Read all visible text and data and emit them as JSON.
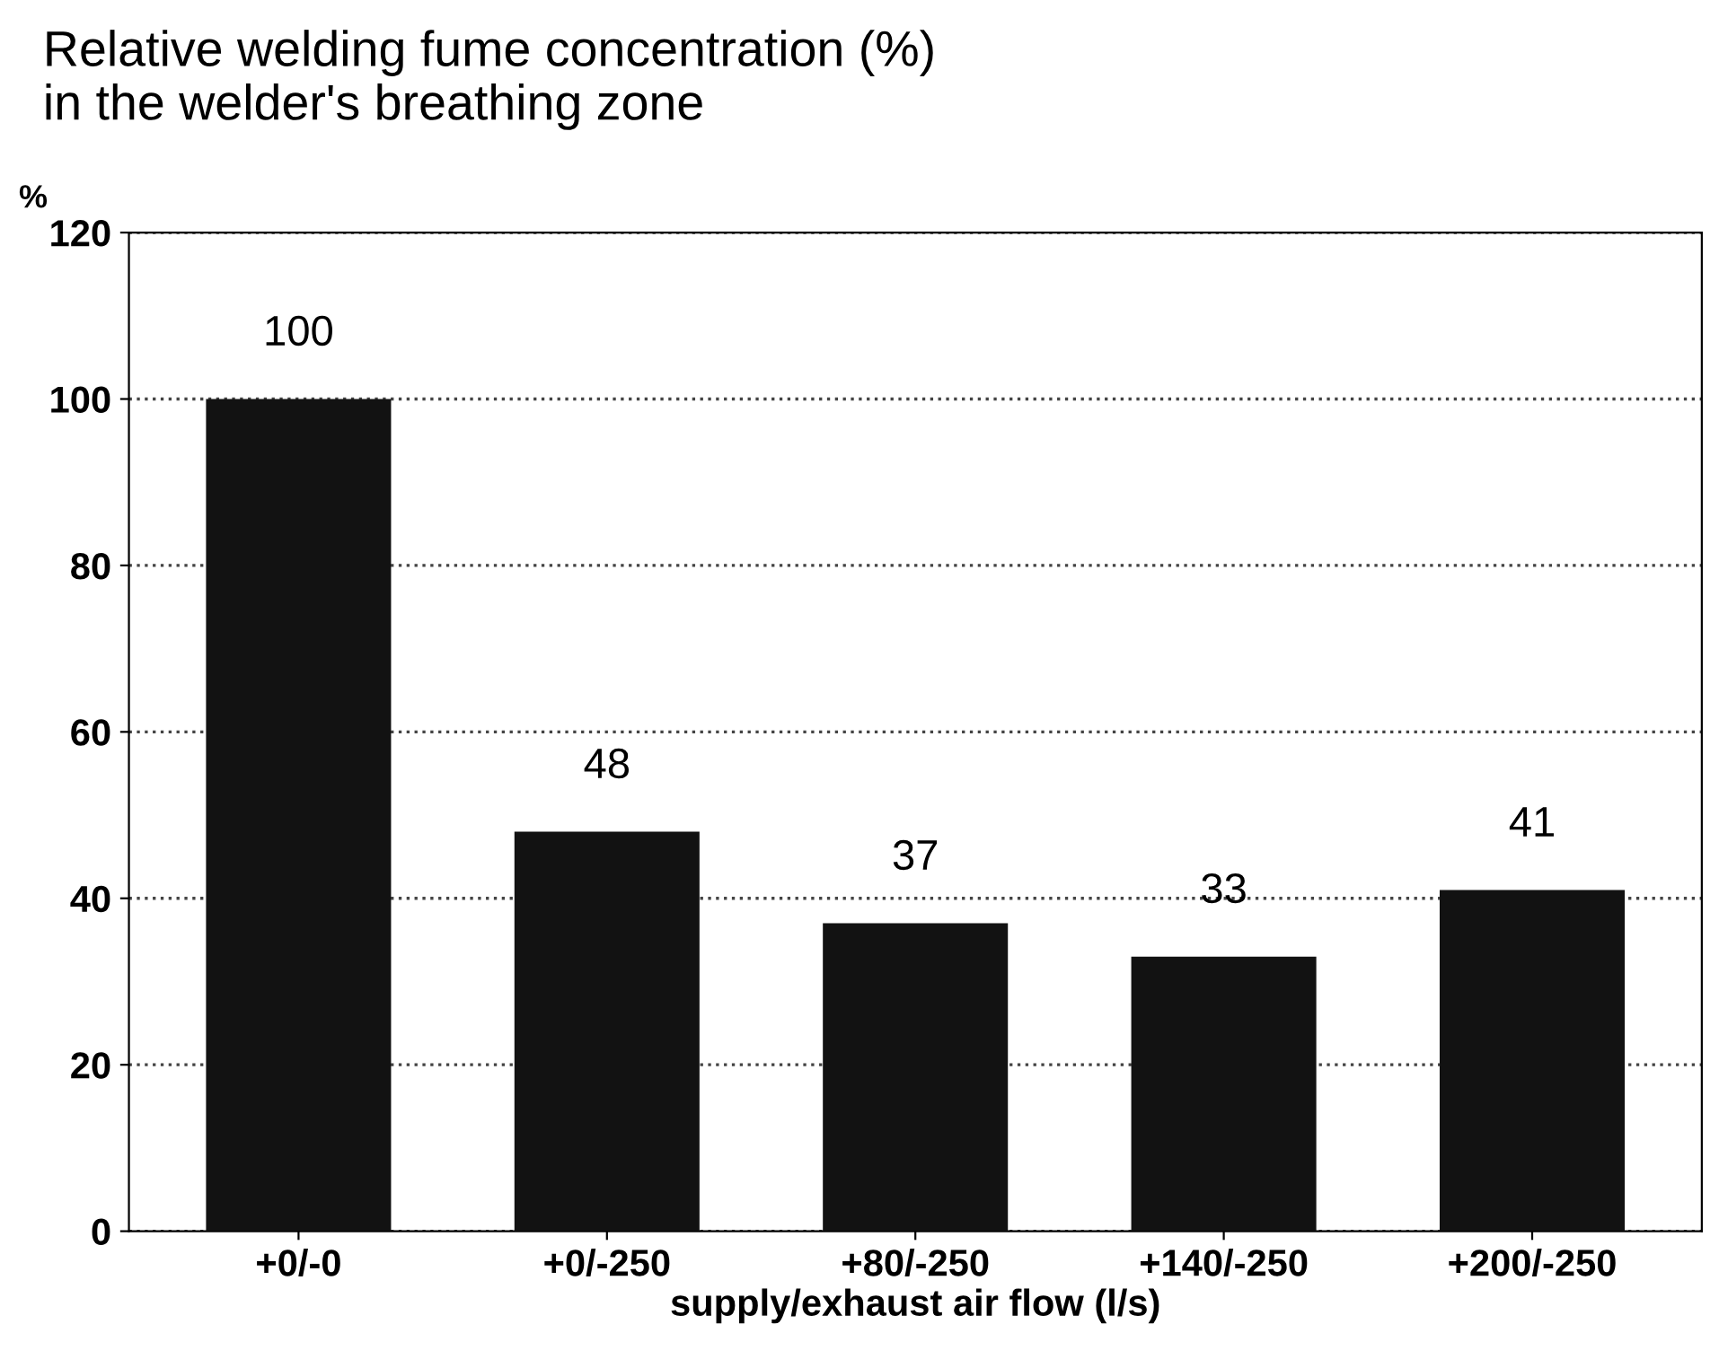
{
  "chart_data": {
    "type": "bar",
    "title": "Relative welding fume concentration (%)\nin the welder's breathing zone",
    "ylabel": "%",
    "xlabel": "supply/exhaust air flow (l/s)",
    "categories": [
      "+0/-0",
      "+0/-250",
      "+80/-250",
      "+140/-250",
      "+200/-250"
    ],
    "values": [
      100,
      48,
      37,
      33,
      41
    ],
    "color": "#121212",
    "ylim": [
      0,
      120
    ],
    "yticks": [
      0,
      20,
      40,
      60,
      80,
      100,
      120
    ],
    "grid": "y",
    "line_style": "dotted",
    "data_labels": true
  }
}
